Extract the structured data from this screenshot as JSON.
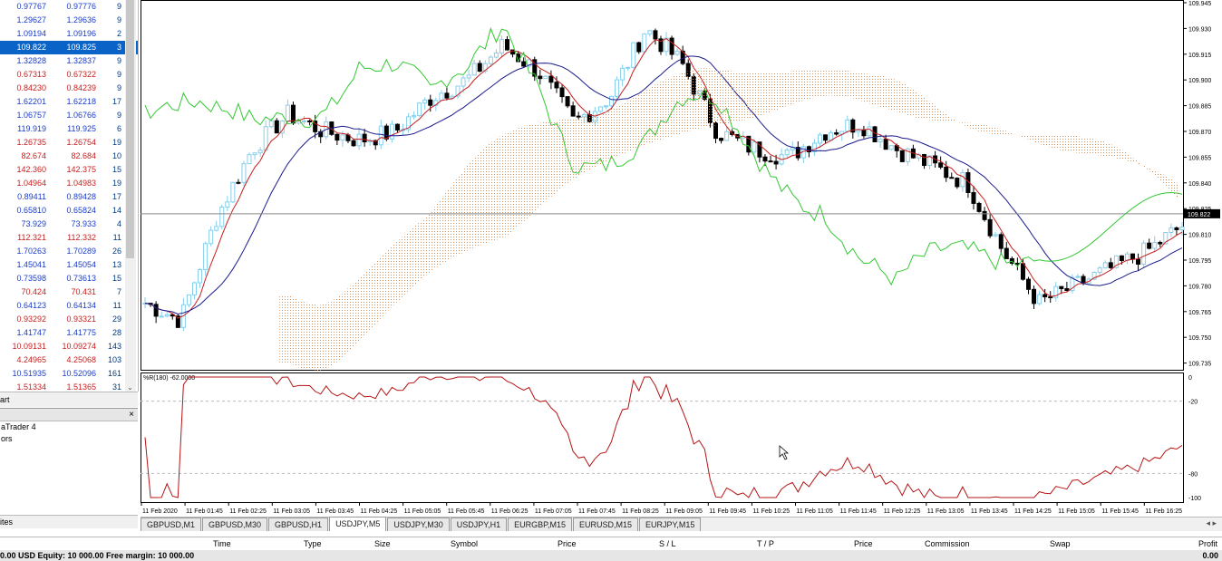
{
  "market_watch": {
    "rows": [
      {
        "bid": "0.97767",
        "ask": "0.97776",
        "spread": "9",
        "color": "blue"
      },
      {
        "bid": "1.29627",
        "ask": "1.29636",
        "spread": "9",
        "color": "blue"
      },
      {
        "bid": "1.09194",
        "ask": "1.09196",
        "spread": "2",
        "color": "blue"
      },
      {
        "bid": "109.822",
        "ask": "109.825",
        "spread": "3",
        "color": "sel"
      },
      {
        "bid": "1.32828",
        "ask": "1.32837",
        "spread": "9",
        "color": "blue"
      },
      {
        "bid": "0.67313",
        "ask": "0.67322",
        "spread": "9",
        "color": "red"
      },
      {
        "bid": "0.84230",
        "ask": "0.84239",
        "spread": "9",
        "color": "red"
      },
      {
        "bid": "1.62201",
        "ask": "1.62218",
        "spread": "17",
        "color": "blue"
      },
      {
        "bid": "1.06757",
        "ask": "1.06766",
        "spread": "9",
        "color": "blue"
      },
      {
        "bid": "119.919",
        "ask": "119.925",
        "spread": "6",
        "color": "blue"
      },
      {
        "bid": "1.26735",
        "ask": "1.26754",
        "spread": "19",
        "color": "red"
      },
      {
        "bid": "82.674",
        "ask": "82.684",
        "spread": "10",
        "color": "red"
      },
      {
        "bid": "142.360",
        "ask": "142.375",
        "spread": "15",
        "color": "red"
      },
      {
        "bid": "1.04964",
        "ask": "1.04983",
        "spread": "19",
        "color": "red"
      },
      {
        "bid": "0.89411",
        "ask": "0.89428",
        "spread": "17",
        "color": "blue"
      },
      {
        "bid": "0.65810",
        "ask": "0.65824",
        "spread": "14",
        "color": "blue"
      },
      {
        "bid": "73.929",
        "ask": "73.933",
        "spread": "4",
        "color": "blue"
      },
      {
        "bid": "112.321",
        "ask": "112.332",
        "spread": "11",
        "color": "red"
      },
      {
        "bid": "1.70263",
        "ask": "1.70289",
        "spread": "26",
        "color": "blue"
      },
      {
        "bid": "1.45041",
        "ask": "1.45054",
        "spread": "13",
        "color": "blue"
      },
      {
        "bid": "0.73598",
        "ask": "0.73613",
        "spread": "15",
        "color": "blue"
      },
      {
        "bid": "70.424",
        "ask": "70.431",
        "spread": "7",
        "color": "red"
      },
      {
        "bid": "0.64123",
        "ask": "0.64134",
        "spread": "11",
        "color": "blue"
      },
      {
        "bid": "0.93292",
        "ask": "0.93321",
        "spread": "29",
        "color": "red"
      },
      {
        "bid": "1.41747",
        "ask": "1.41775",
        "spread": "28",
        "color": "blue"
      },
      {
        "bid": "10.09131",
        "ask": "10.09274",
        "spread": "143",
        "color": "red"
      },
      {
        "bid": "4.24965",
        "ask": "4.25068",
        "spread": "103",
        "color": "red"
      },
      {
        "bid": "10.51935",
        "ask": "10.52096",
        "spread": "161",
        "color": "blue"
      },
      {
        "bid": "1.51334",
        "ask": "1.51365",
        "spread": "31",
        "color": "red"
      }
    ],
    "tab_label": "art"
  },
  "navigator": {
    "close": "×",
    "items": [
      "aTrader 4",
      "",
      "",
      "ors"
    ],
    "tab_label": "ites"
  },
  "chart": {
    "price_axis": [
      "109.945",
      "109.930",
      "109.915",
      "109.900",
      "109.885",
      "109.870",
      "109.855",
      "109.840",
      "109.825",
      "109.810",
      "109.795",
      "109.780",
      "109.765",
      "109.750",
      "109.735"
    ],
    "current_price": "109.822",
    "indicator_label": "%R(180) -62.0000",
    "indicator_axis": [
      "0",
      "-20",
      "-80",
      "-100"
    ],
    "time_axis": [
      "11 Feb 2020",
      "11 Feb 01:45",
      "11 Feb 02:25",
      "11 Feb 03:05",
      "11 Feb 03:45",
      "11 Feb 04:25",
      "11 Feb 05:05",
      "11 Feb 05:45",
      "11 Feb 06:25",
      "11 Feb 07:05",
      "11 Feb 07:45",
      "11 Feb 08:25",
      "11 Feb 09:05",
      "11 Feb 09:45",
      "11 Feb 10:25",
      "11 Feb 11:05",
      "11 Feb 11:45",
      "11 Feb 12:25",
      "11 Feb 13:05",
      "11 Feb 13:45",
      "11 Feb 14:25",
      "11 Feb 15:05",
      "11 Feb 15:45",
      "11 Feb 16:25"
    ],
    "colors": {
      "bull": "#87ceeb",
      "bear": "#000000",
      "tenkan": "#c81e1e",
      "kijun": "#1a1a8c",
      "chikou": "#32c832",
      "cloud": "#d2915a",
      "wpr": "#b41414"
    }
  },
  "chart_tabs": [
    {
      "label": "GBPUSD,M1",
      "active": false
    },
    {
      "label": "GBPUSD,M30",
      "active": false
    },
    {
      "label": "GBPUSD,H1",
      "active": false
    },
    {
      "label": "USDJPY,M5",
      "active": true
    },
    {
      "label": "USDJPY,M30",
      "active": false
    },
    {
      "label": "USDJPY,H1",
      "active": false
    },
    {
      "label": "EURGBP,M15",
      "active": false
    },
    {
      "label": "EURUSD,M15",
      "active": false
    },
    {
      "label": "EURJPY,M15",
      "active": false
    }
  ],
  "terminal": {
    "columns": [
      "Time",
      "Type",
      "Size",
      "Symbol",
      "Price",
      "S / L",
      "T / P",
      "Price",
      "Commission",
      "Swap",
      "Profit"
    ],
    "status": "0.00 USD  Equity: 10 000.00  Free margin: 10 000.00",
    "profit_total": "0.00"
  }
}
